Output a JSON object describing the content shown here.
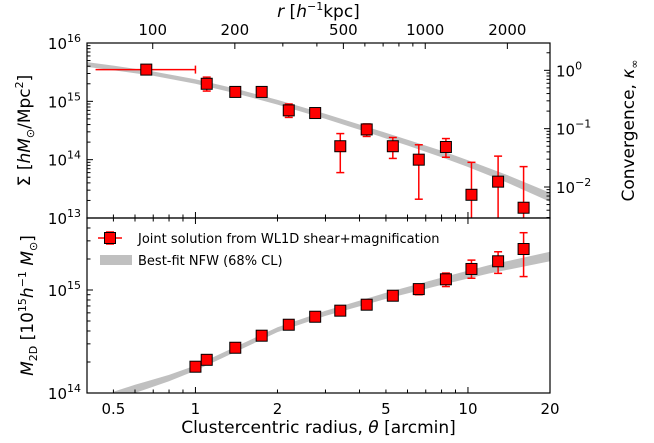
{
  "chart_data": [
    {
      "type": "scatter",
      "panel": "top",
      "xscale": "log",
      "yscale": "log",
      "xlim": [
        0.4,
        20
      ],
      "ylim": [
        10000000000000.0,
        1e+16
      ],
      "xlabel": "Clustercentric radius, θ [arcmin]",
      "ylabel": "Σ [hM⊙/Mpc²]",
      "y2label": "Convergence, κ∞",
      "top_xlabel": "r [h⁻¹kpc]",
      "x_ticks": [
        "0.5",
        "1",
        "2",
        "5",
        "10",
        "20"
      ],
      "y_ticks": [
        "10^13",
        "10^14",
        "10^15",
        "10^16"
      ],
      "top_x_ticks": [
        {
          "label": "100",
          "theta": 0.697
        },
        {
          "label": "200",
          "theta": 1.395
        },
        {
          "label": "500",
          "theta": 3.49
        },
        {
          "label": "1000",
          "theta": 6.97
        },
        {
          "label": "2000",
          "theta": 13.95
        }
      ],
      "y2_ticks": [
        {
          "label": "10^0",
          "sigma": 3400000000000000.0
        },
        {
          "label": "10^-1",
          "sigma": 340000000000000.0
        },
        {
          "label": "10^-2",
          "sigma": 34000000000000.0
        }
      ],
      "series": [
        {
          "name": "Joint solution from WL1D shear+magnification",
          "points": [
            {
              "x": 0.66,
              "y": 3500000000000000.0,
              "ylo": 3000000000000000.0,
              "yhi": 4000000000000000.0,
              "xlo": 0.43,
              "xhi": 1.0
            },
            {
              "x": 1.1,
              "y": 2000000000000000.0,
              "ylo": 1500000000000000.0,
              "yhi": 2600000000000000.0
            },
            {
              "x": 1.4,
              "y": 1450000000000000.0,
              "ylo": 1200000000000000.0,
              "yhi": 1700000000000000.0
            },
            {
              "x": 1.75,
              "y": 1450000000000000.0,
              "ylo": 1250000000000000.0,
              "yhi": 1650000000000000.0
            },
            {
              "x": 2.2,
              "y": 700000000000000.0,
              "ylo": 530000000000000.0,
              "yhi": 900000000000000.0
            },
            {
              "x": 2.75,
              "y": 630000000000000.0,
              "ylo": 520000000000000.0,
              "yhi": 750000000000000.0
            },
            {
              "x": 3.4,
              "y": 170000000000000.0,
              "ylo": 60000000000000.0,
              "yhi": 280000000000000.0
            },
            {
              "x": 4.25,
              "y": 330000000000000.0,
              "ylo": 250000000000000.0,
              "yhi": 410000000000000.0
            },
            {
              "x": 5.3,
              "y": 170000000000000.0,
              "ylo": 105000000000000.0,
              "yhi": 240000000000000.0
            },
            {
              "x": 6.6,
              "y": 100000000000000.0,
              "ylo": 21000000000000.0,
              "yhi": 180000000000000.0
            },
            {
              "x": 8.3,
              "y": 165000000000000.0,
              "ylo": 110000000000000.0,
              "yhi": 230000000000000.0
            },
            {
              "x": 10.3,
              "y": 25000000000000.0,
              "ylo": 5000000000000.0,
              "yhi": 90000000000000.0
            },
            {
              "x": 12.9,
              "y": 42000000000000.0,
              "ylo": 5000000000000.0,
              "yhi": 115000000000000.0
            },
            {
              "x": 16.0,
              "y": 15000000000000.0,
              "ylo": 5000000000000.0,
              "yhi": 76000000000000.0
            }
          ]
        },
        {
          "name": "Best-fit NFW (68% CL)",
          "band": [
            {
              "x": 0.4,
              "lo": 3900000000000000.0,
              "hi": 4700000000000000.0
            },
            {
              "x": 0.5,
              "lo": 3400000000000000.0,
              "hi": 4100000000000000.0
            },
            {
              "x": 0.7,
              "lo": 2750000000000000.0,
              "hi": 3250000000000000.0
            },
            {
              "x": 1.0,
              "lo": 2000000000000000.0,
              "hi": 2400000000000000.0
            },
            {
              "x": 1.4,
              "lo": 1380000000000000.0,
              "hi": 1650000000000000.0
            },
            {
              "x": 2.0,
              "lo": 880000000000000.0,
              "hi": 1060000000000000.0
            },
            {
              "x": 3.0,
              "lo": 500000000000000.0,
              "hi": 610000000000000.0
            },
            {
              "x": 4.0,
              "lo": 325000000000000.0,
              "hi": 400000000000000.0
            },
            {
              "x": 6.0,
              "lo": 175000000000000.0,
              "hi": 220000000000000.0
            },
            {
              "x": 8.0,
              "lo": 110000000000000.0,
              "hi": 142000000000000.0
            },
            {
              "x": 10.0,
              "lo": 75000000000000.0,
              "hi": 98000000000000.0
            },
            {
              "x": 14.0,
              "lo": 40000000000000.0,
              "hi": 54000000000000.0
            },
            {
              "x": 20.0,
              "lo": 19000000000000.0,
              "hi": 27000000000000.0
            }
          ]
        }
      ]
    },
    {
      "type": "scatter",
      "panel": "bottom",
      "xscale": "log",
      "yscale": "log",
      "xlim": [
        0.4,
        20
      ],
      "ylim": [
        100000000000000.0,
        5000000000000000.0
      ],
      "xlabel": "Clustercentric radius, θ [arcmin]",
      "ylabel": "M2D [10^15 h^-1 M⊙]",
      "x_ticks": [
        "0.5",
        "1",
        "2",
        "5",
        "10",
        "20"
      ],
      "y_ticks": [
        "10^14",
        "10^15"
      ],
      "legend": "top-left",
      "series": [
        {
          "name": "Joint solution from WL1D shear+magnification",
          "points": [
            {
              "x": 1.0,
              "y": 180000000000000.0,
              "ylo": 172000000000000.0,
              "yhi": 188000000000000.0
            },
            {
              "x": 1.1,
              "y": 210000000000000.0,
              "ylo": 200000000000000.0,
              "yhi": 220000000000000.0
            },
            {
              "x": 1.4,
              "y": 275000000000000.0,
              "ylo": 263000000000000.0,
              "yhi": 287000000000000.0
            },
            {
              "x": 1.75,
              "y": 360000000000000.0,
              "ylo": 345000000000000.0,
              "yhi": 375000000000000.0
            },
            {
              "x": 2.2,
              "y": 460000000000000.0,
              "ylo": 440000000000000.0,
              "yhi": 480000000000000.0
            },
            {
              "x": 2.75,
              "y": 550000000000000.0,
              "ylo": 525000000000000.0,
              "yhi": 575000000000000.0
            },
            {
              "x": 3.4,
              "y": 630000000000000.0,
              "ylo": 600000000000000.0,
              "yhi": 660000000000000.0
            },
            {
              "x": 4.25,
              "y": 720000000000000.0,
              "ylo": 680000000000000.0,
              "yhi": 760000000000000.0
            },
            {
              "x": 5.3,
              "y": 880000000000000.0,
              "ylo": 830000000000000.0,
              "yhi": 930000000000000.0
            },
            {
              "x": 6.6,
              "y": 1020000000000000.0,
              "ylo": 900000000000000.0,
              "yhi": 1140000000000000.0
            },
            {
              "x": 8.3,
              "y": 1270000000000000.0,
              "ylo": 1080000000000000.0,
              "yhi": 1460000000000000.0
            },
            {
              "x": 10.3,
              "y": 1600000000000000.0,
              "ylo": 1300000000000000.0,
              "yhi": 1950000000000000.0
            },
            {
              "x": 12.9,
              "y": 1900000000000000.0,
              "ylo": 1450000000000000.0,
              "yhi": 2350000000000000.0
            },
            {
              "x": 16.0,
              "y": 2500000000000000.0,
              "ylo": 1350000000000000.0,
              "yhi": 3600000000000000.0
            }
          ]
        },
        {
          "name": "Best-fit NFW (68% CL)",
          "band": [
            {
              "x": 0.5,
              "lo": 85000000000000.0,
              "hi": 103000000000000.0
            },
            {
              "x": 0.6,
              "lo": 100000000000000.0,
              "hi": 120000000000000.0
            },
            {
              "x": 0.8,
              "lo": 130000000000000.0,
              "hi": 150000000000000.0
            },
            {
              "x": 1.0,
              "lo": 165000000000000.0,
              "hi": 185000000000000.0
            },
            {
              "x": 1.4,
              "lo": 250000000000000.0,
              "hi": 280000000000000.0
            },
            {
              "x": 2.0,
              "lo": 390000000000000.0,
              "hi": 435000000000000.0
            },
            {
              "x": 3.0,
              "lo": 560000000000000.0,
              "hi": 630000000000000.0
            },
            {
              "x": 5.0,
              "lo": 820000000000000.0,
              "hi": 940000000000000.0
            },
            {
              "x": 8.0,
              "lo": 1120000000000000.0,
              "hi": 1320000000000000.0
            },
            {
              "x": 12.0,
              "lo": 1450000000000000.0,
              "hi": 1750000000000000.0
            },
            {
              "x": 20.0,
              "lo": 1900000000000000.0,
              "hi": 2350000000000000.0
            }
          ]
        }
      ]
    }
  ],
  "labels": {
    "top_axis": "r [h⁻¹kpc]",
    "x_axis": "Clustercentric radius, θ [arcmin]",
    "y_top": "Σ [hM⊙/Mpc²]",
    "y_bottom": "M2D [10¹⁵h⁻¹ M⊙]",
    "y2": "Convergence, κ∞",
    "legend_points": "Joint solution from WL1D shear+magnification",
    "legend_band": "Best-fit NFW (68% CL)"
  },
  "colors": {
    "marker_fill": "#ff0000",
    "marker_edge": "#000000",
    "errorbar": "#ff0000",
    "band": "#c0c0c0"
  }
}
